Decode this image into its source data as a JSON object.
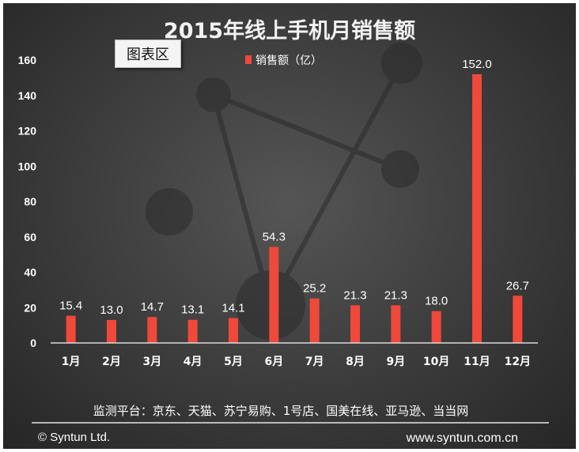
{
  "chart_area_tag": "图表区",
  "footer": {
    "platforms": "监测平台：京东、天猫、苏宁易购、1号店、国美在线、亚马逊、当当网",
    "copyright": "© Syntun Ltd.",
    "website": "www.syntun.com.cn"
  },
  "colors": {
    "bar": "#f0483a",
    "background": "#3b3b3b",
    "text": "#ffffff",
    "decor": "#2a2a2a"
  },
  "chart_data": {
    "type": "bar",
    "title": "2015年线上手机月销售额",
    "xlabel": "",
    "ylabel": "",
    "categories": [
      "1月",
      "2月",
      "3月",
      "4月",
      "5月",
      "6月",
      "7月",
      "8月",
      "9月",
      "10月",
      "11月",
      "12月"
    ],
    "series": [
      {
        "name": "销售额（亿）",
        "values": [
          15.4,
          13.0,
          14.7,
          13.1,
          14.1,
          54.3,
          25.2,
          21.3,
          21.3,
          18.0,
          152.0,
          26.7
        ],
        "labels": [
          "15.4",
          "13.0",
          "14.7",
          "13.1",
          "14.1",
          "54.3",
          "25.2",
          "21.3",
          "21.3",
          "18.0",
          "152.0",
          "26.7"
        ]
      }
    ],
    "ylim": [
      0,
      160
    ],
    "yticks": [
      0,
      20,
      40,
      60,
      80,
      100,
      120,
      140,
      160
    ],
    "grid": false,
    "legend": "top-center"
  }
}
